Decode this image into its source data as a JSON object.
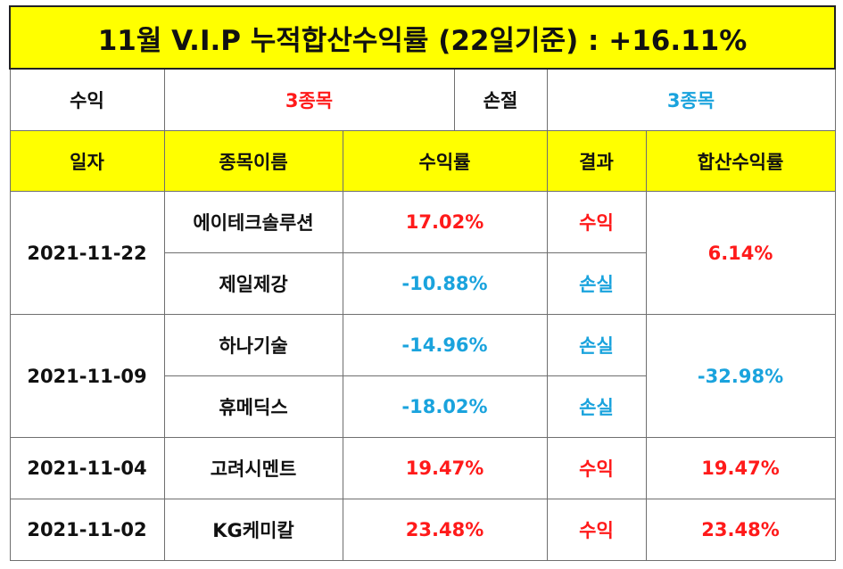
{
  "title": "11월 V.I.P 누적합산수익률 (22일기준) : +16.11%",
  "summary": {
    "profit_label": "수익",
    "profit_value": "3종목",
    "loss_label": "손절",
    "loss_value": "3종목"
  },
  "headers": {
    "date": "일자",
    "stock_name": "종목이름",
    "return_rate": "수익률",
    "result": "결과",
    "combined_rate": "합산수익률"
  },
  "groups": [
    {
      "date": "2021-11-22",
      "combined": "6.14%",
      "combined_type": "profit",
      "rows": [
        {
          "name": "에이테크솔루션",
          "rate": "17.02%",
          "rate_type": "profit",
          "result": "수익",
          "result_type": "profit"
        },
        {
          "name": "제일제강",
          "rate": "-10.88%",
          "rate_type": "loss",
          "result": "손실",
          "result_type": "loss"
        }
      ]
    },
    {
      "date": "2021-11-09",
      "combined": "-32.98%",
      "combined_type": "loss",
      "rows": [
        {
          "name": "하나기술",
          "rate": "-14.96%",
          "rate_type": "loss",
          "result": "손실",
          "result_type": "loss"
        },
        {
          "name": "휴메딕스",
          "rate": "-18.02%",
          "rate_type": "loss",
          "result": "손실",
          "result_type": "loss"
        }
      ]
    },
    {
      "date": "2021-11-04",
      "combined": "19.47%",
      "combined_type": "profit",
      "rows": [
        {
          "name": "고려시멘트",
          "rate": "19.47%",
          "rate_type": "profit",
          "result": "수익",
          "result_type": "profit"
        }
      ]
    },
    {
      "date": "2021-11-02",
      "combined": "23.48%",
      "combined_type": "profit",
      "rows": [
        {
          "name": "KG케미칼",
          "rate": "23.48%",
          "rate_type": "profit",
          "result": "수익",
          "result_type": "profit"
        }
      ]
    }
  ],
  "colors": {
    "header_bg": "#ffff00",
    "profit": "#ff1a1a",
    "loss": "#1aa3dd"
  }
}
